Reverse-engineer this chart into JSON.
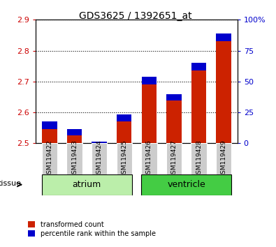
{
  "title": "GDS3625 / 1392651_at",
  "samples": [
    "GSM119422",
    "GSM119423",
    "GSM119424",
    "GSM119425",
    "GSM119426",
    "GSM119427",
    "GSM119428",
    "GSM119429"
  ],
  "red_values": [
    2.57,
    2.545,
    2.505,
    2.593,
    2.715,
    2.66,
    2.76,
    2.855
  ],
  "blue_values": [
    0.025,
    0.02,
    0.022,
    0.023,
    0.025,
    0.022,
    0.025,
    0.025
  ],
  "ylim_left": [
    2.5,
    2.9
  ],
  "ylim_right": [
    0,
    100
  ],
  "yticks_left": [
    2.5,
    2.6,
    2.7,
    2.8,
    2.9
  ],
  "yticks_right": [
    0,
    25,
    50,
    75,
    100
  ],
  "ytick_labels_right": [
    "0",
    "25",
    "50",
    "75",
    "100%"
  ],
  "left_color": "#cc0000",
  "right_color": "#0000cc",
  "bar_width": 0.6,
  "red_color": "#cc2200",
  "blue_color": "#0000cc",
  "bg_color": "#cccccc",
  "atrium_color": "#bbeeaa",
  "ventricle_color": "#44cc44",
  "tissue_label": "tissue",
  "legend_red": "transformed count",
  "legend_blue": "percentile rank within the sample"
}
